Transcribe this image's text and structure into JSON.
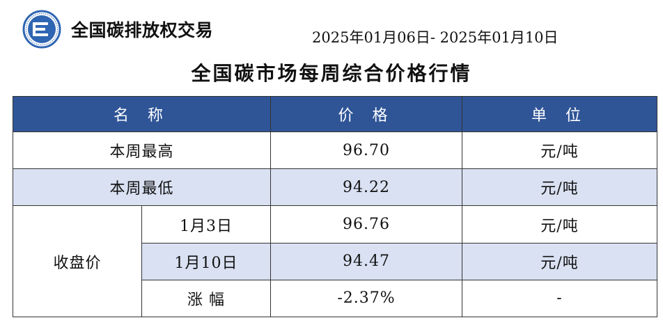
{
  "header": {
    "brand": "全国碳排放权交易",
    "date_range": "2025年01月06日- 2025年01月10日",
    "title": "全国碳市场每周综合价格行情"
  },
  "colors": {
    "header_bg": "#2f5597",
    "shade_bg": "#d9e1f2",
    "logo_blue": "#2f66b3"
  },
  "icons": {
    "logo": "carbon-exchange-logo-icon"
  },
  "table": {
    "headers": {
      "name": "名 称",
      "price": "价 格",
      "unit": "单 位"
    },
    "weekly_high": {
      "label": "本周最高",
      "price": "96.70",
      "unit": "元/吨"
    },
    "weekly_low": {
      "label": "本周最低",
      "price": "94.22",
      "unit": "元/吨"
    },
    "closing": {
      "label": "收盘价",
      "d1": {
        "label": "1月3日",
        "price": "96.76",
        "unit": "元/吨"
      },
      "d2": {
        "label": "1月10日",
        "price": "94.47",
        "unit": "元/吨"
      },
      "change": {
        "label": "涨 幅",
        "price": "-2.37%",
        "unit": "-"
      }
    }
  }
}
